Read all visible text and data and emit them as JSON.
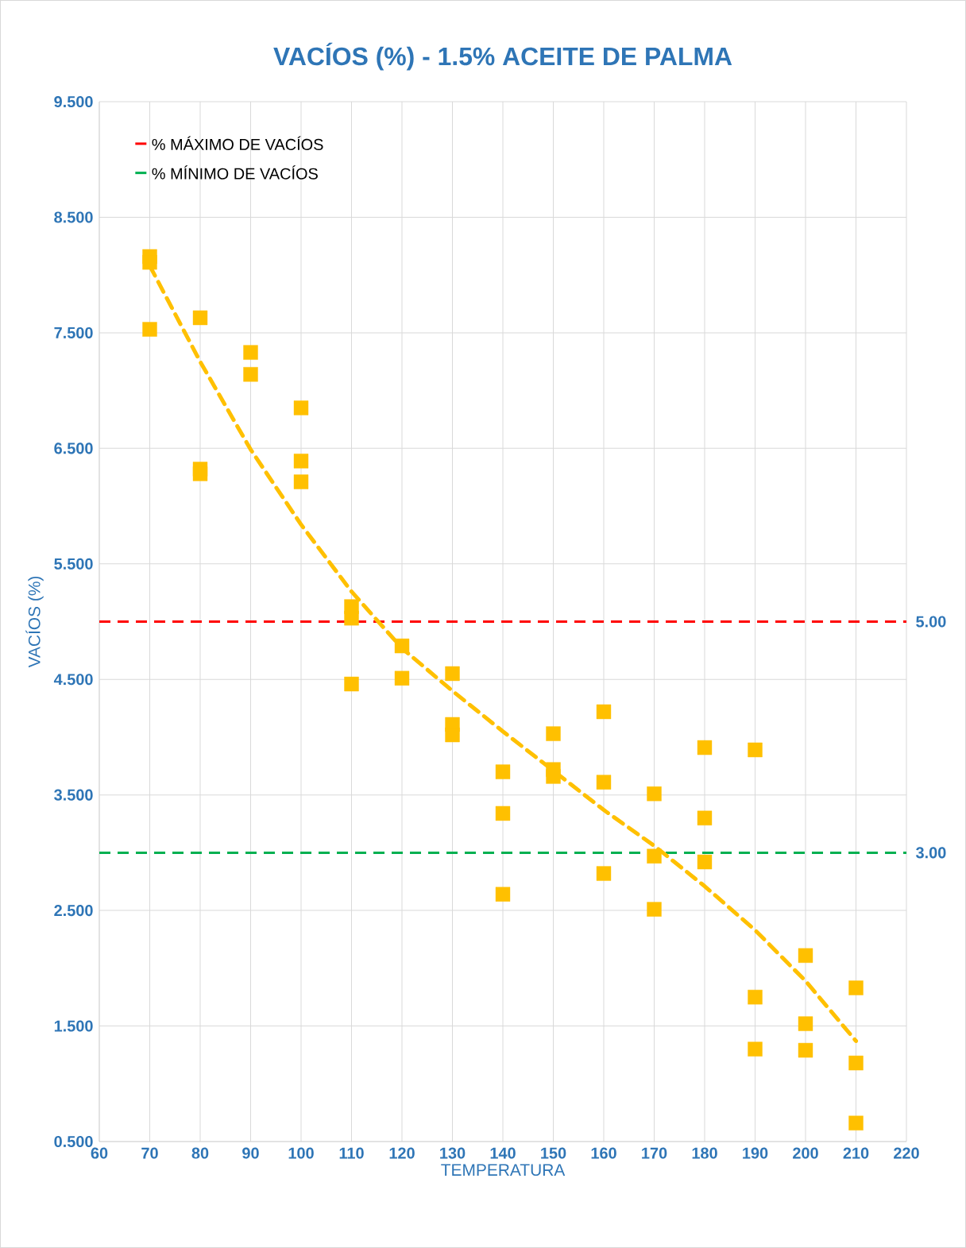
{
  "chart_data": {
    "type": "scatter",
    "title": "VACÍOS (%) - 1.5% ACEITE DE PALMA",
    "xlabel": "TEMPERATURA",
    "ylabel": "VACÍOS (%)",
    "xlim": [
      60,
      220
    ],
    "xticks": [
      60,
      70,
      80,
      90,
      100,
      110,
      120,
      130,
      140,
      150,
      160,
      170,
      180,
      190,
      200,
      210,
      220
    ],
    "ylim": [
      0.5,
      9.5
    ],
    "yticks": [
      {
        "value": 0.5,
        "label": "0.500"
      },
      {
        "value": 1.5,
        "label": "1.500"
      },
      {
        "value": 2.5,
        "label": "2.500"
      },
      {
        "value": 3.5,
        "label": "3.500"
      },
      {
        "value": 4.5,
        "label": "4.500"
      },
      {
        "value": 5.5,
        "label": "5.500"
      },
      {
        "value": 6.5,
        "label": "6.500"
      },
      {
        "value": 7.5,
        "label": "7.500"
      },
      {
        "value": 8.5,
        "label": "8.500"
      },
      {
        "value": 9.5,
        "label": "9.500"
      }
    ],
    "grid": true,
    "legend": "top left",
    "series": [
      {
        "type": "scatter",
        "color": "#ffc000",
        "marker": "square",
        "x": [
          70,
          70,
          70,
          80,
          80,
          80,
          90,
          90,
          100,
          100,
          100,
          110,
          110,
          110,
          120,
          120,
          130,
          130,
          130,
          140,
          140,
          140,
          150,
          150,
          150,
          160,
          160,
          160,
          170,
          170,
          170,
          180,
          180,
          180,
          190,
          190,
          190,
          200,
          200,
          200,
          210,
          210,
          210
        ],
        "values": [
          8.16,
          8.11,
          7.53,
          7.63,
          6.32,
          6.28,
          7.33,
          7.14,
          6.85,
          6.39,
          6.21,
          5.13,
          5.03,
          4.46,
          4.79,
          4.51,
          4.55,
          4.11,
          4.02,
          3.7,
          3.34,
          2.64,
          4.03,
          3.72,
          3.66,
          4.22,
          3.61,
          2.82,
          3.51,
          2.97,
          2.51,
          3.91,
          3.3,
          2.92,
          3.89,
          1.75,
          1.3,
          2.11,
          1.52,
          1.29,
          1.83,
          1.18,
          0.66
        ]
      },
      {
        "type": "line",
        "color": "#ffc000",
        "line_style": "dashed",
        "x": [
          70,
          80,
          90,
          100,
          110,
          120,
          130,
          140,
          150,
          160,
          170,
          180,
          190,
          200,
          210
        ],
        "values": [
          8.08,
          7.25,
          6.49,
          5.84,
          5.26,
          4.77,
          4.4,
          4.05,
          3.71,
          3.37,
          3.06,
          2.71,
          2.33,
          1.89,
          1.37
        ]
      }
    ],
    "ref_lines": [
      {
        "axis": "y",
        "value": 5,
        "label": "% MÁXIMO DE VACÍOS",
        "color": "#ff0000",
        "line_style": "dashed"
      },
      {
        "axis": "y",
        "value": 3,
        "label": "% MÍNIMO DE VACÍOS",
        "color": "#00b050",
        "line_style": "dashed"
      }
    ],
    "annotations": [
      {
        "text": "5.00",
        "x": 220,
        "y": 5
      },
      {
        "text": "3.00",
        "x": 220,
        "y": 3
      }
    ]
  }
}
